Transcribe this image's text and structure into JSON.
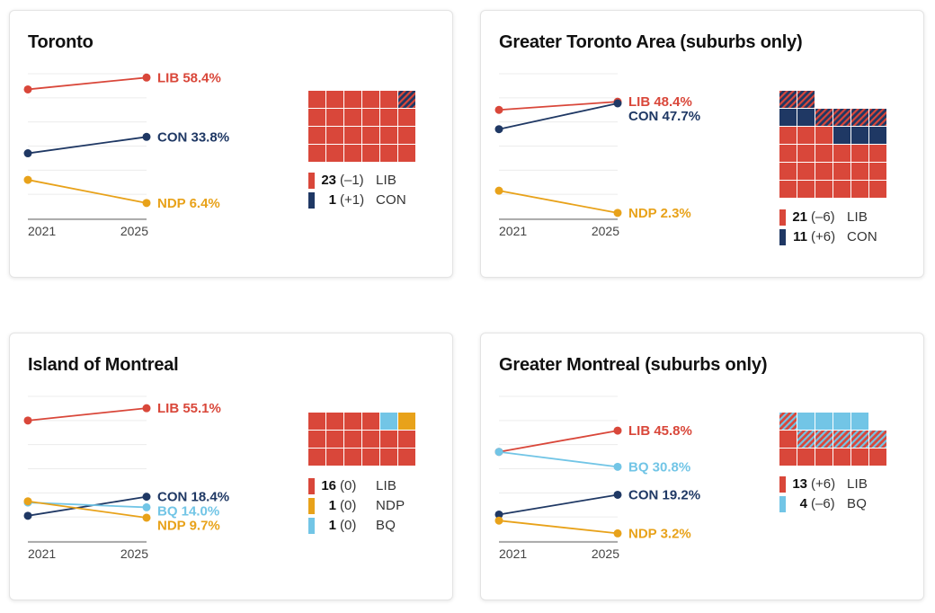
{
  "colors": {
    "LIB": "#d9473a",
    "CON": "#1f3864",
    "NDP": "#e8a21a",
    "BQ": "#72c5e6",
    "hatch_dark": "#1f3864",
    "hatch_light": "#72c5e6"
  },
  "chart_data": [
    {
      "type": "line",
      "title": "Toronto",
      "x": [
        "2021",
        "2025"
      ],
      "ylim": [
        0,
        60
      ],
      "grid": true,
      "series": [
        {
          "name": "LIB",
          "values": [
            53.5,
            58.4
          ],
          "label": "LIB 58.4%"
        },
        {
          "name": "CON",
          "values": [
            27.0,
            33.8
          ],
          "label": "CON 33.8%"
        },
        {
          "name": "NDP",
          "values": [
            16.0,
            6.4
          ],
          "label": "NDP 6.4%"
        }
      ],
      "seats": {
        "columns": 6,
        "cells": [
          "LIB",
          "LIB",
          "LIB",
          "LIB",
          "LIB",
          "FLIP_CON_FROM_LIB",
          "LIB",
          "LIB",
          "LIB",
          "LIB",
          "LIB",
          "LIB",
          "LIB",
          "LIB",
          "LIB",
          "LIB",
          "LIB",
          "LIB",
          "LIB",
          "LIB",
          "LIB",
          "LIB",
          "LIB",
          "LIB"
        ],
        "legend": [
          {
            "party": "LIB",
            "count": "23",
            "change": "(–1)"
          },
          {
            "party": "CON",
            "count": "1",
            "change": "(+1)"
          }
        ]
      }
    },
    {
      "type": "line",
      "title": "Greater Toronto Area (suburbs only)",
      "x": [
        "2021",
        "2025"
      ],
      "ylim": [
        0,
        60
      ],
      "grid": true,
      "series": [
        {
          "name": "LIB",
          "values": [
            45.0,
            48.4
          ],
          "label": "LIB 48.4%"
        },
        {
          "name": "CON",
          "values": [
            37.0,
            47.7
          ],
          "label": "CON 47.7%"
        },
        {
          "name": "NDP",
          "values": [
            11.5,
            2.3
          ],
          "label": "NDP 2.3%"
        }
      ],
      "seats": {
        "columns": 6,
        "cells": [
          "FLIP_CON_FROM_LIB",
          "FLIP_CON_FROM_LIB",
          "EMPTY",
          "EMPTY",
          "EMPTY",
          "EMPTY",
          "CON",
          "CON",
          "FLIP_CON_FROM_LIB",
          "FLIP_CON_FROM_LIB",
          "FLIP_CON_FROM_LIB",
          "FLIP_CON_FROM_LIB",
          "LIB",
          "LIB",
          "LIB",
          "CON",
          "CON",
          "CON",
          "LIB",
          "LIB",
          "LIB",
          "LIB",
          "LIB",
          "LIB",
          "LIB",
          "LIB",
          "LIB",
          "LIB",
          "LIB",
          "LIB",
          "LIB",
          "LIB",
          "LIB",
          "LIB",
          "LIB",
          "LIB"
        ],
        "legend": [
          {
            "party": "LIB",
            "count": "21",
            "change": "(–6)"
          },
          {
            "party": "CON",
            "count": "11",
            "change": "(+6)"
          }
        ]
      }
    },
    {
      "type": "line",
      "title": "Island of Montreal",
      "x": [
        "2021",
        "2025"
      ],
      "ylim": [
        0,
        60
      ],
      "grid": true,
      "series": [
        {
          "name": "LIB",
          "values": [
            50.0,
            55.1
          ],
          "label": "LIB 55.1%"
        },
        {
          "name": "CON",
          "values": [
            10.5,
            18.4
          ],
          "label": "CON 18.4%"
        },
        {
          "name": "BQ",
          "values": [
            16.0,
            14.0
          ],
          "label": "BQ 14.0%"
        },
        {
          "name": "NDP",
          "values": [
            16.5,
            9.7
          ],
          "label": "NDP 9.7%"
        }
      ],
      "seats": {
        "columns": 6,
        "cells": [
          "LIB",
          "LIB",
          "LIB",
          "LIB",
          "BQ",
          "NDP",
          "LIB",
          "LIB",
          "LIB",
          "LIB",
          "LIB",
          "LIB",
          "LIB",
          "LIB",
          "LIB",
          "LIB",
          "LIB",
          "LIB"
        ],
        "legend": [
          {
            "party": "LIB",
            "count": "16",
            "change": "(0)"
          },
          {
            "party": "NDP",
            "count": "1",
            "change": "(0)"
          },
          {
            "party": "BQ",
            "count": "1",
            "change": "(0)"
          }
        ]
      }
    },
    {
      "type": "line",
      "title": "Greater Montreal (suburbs only)",
      "x": [
        "2021",
        "2025"
      ],
      "ylim": [
        0,
        60
      ],
      "grid": true,
      "series": [
        {
          "name": "LIB",
          "values": [
            37.0,
            45.8
          ],
          "label": "LIB 45.8%"
        },
        {
          "name": "BQ",
          "values": [
            37.0,
            30.8
          ],
          "label": "BQ 30.8%"
        },
        {
          "name": "CON",
          "values": [
            11.0,
            19.2
          ],
          "label": "CON 19.2%"
        },
        {
          "name": "NDP",
          "values": [
            8.5,
            3.2
          ],
          "label": "NDP 3.2%"
        }
      ],
      "seats": {
        "columns": 6,
        "cells": [
          "FLIP_LIB_FROM_BQ",
          "BQ",
          "BQ",
          "BQ",
          "BQ",
          "EMPTY",
          "LIB",
          "FLIP_LIB_FROM_BQ",
          "FLIP_LIB_FROM_BQ",
          "FLIP_LIB_FROM_BQ",
          "FLIP_LIB_FROM_BQ",
          "FLIP_LIB_FROM_BQ",
          "LIB",
          "LIB",
          "LIB",
          "LIB",
          "LIB",
          "LIB"
        ],
        "legend": [
          {
            "party": "LIB",
            "count": "13",
            "change": "(+6)"
          },
          {
            "party": "BQ",
            "count": "4",
            "change": "(–6)"
          }
        ]
      }
    }
  ]
}
